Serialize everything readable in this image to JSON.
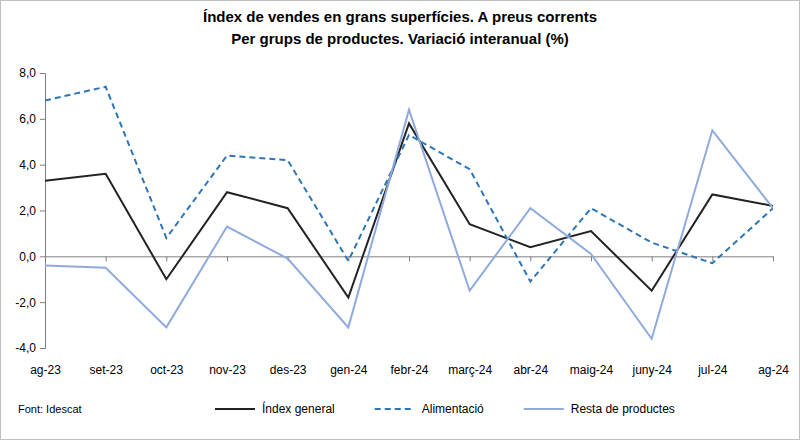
{
  "chart_data": {
    "type": "line",
    "title": "Índex de vendes en grans superfícies. A preus corrents",
    "subtitle": "Per grups de productes. Variació interanual (%)",
    "source": "Font: Idescat",
    "categories": [
      "ag-23",
      "set-23",
      "oct-23",
      "nov-23",
      "des-23",
      "gen-24",
      "febr-24",
      "març-24",
      "abr-24",
      "maig-24",
      "juny-24",
      "jul-24",
      "ag-24"
    ],
    "series": [
      {
        "name": "Índex general",
        "color": "#222222",
        "line_style": "solid",
        "values": [
          3.3,
          3.6,
          -1.0,
          2.8,
          2.1,
          -1.8,
          5.8,
          1.4,
          0.4,
          1.1,
          -1.5,
          2.7,
          2.2
        ]
      },
      {
        "name": "Alimentació",
        "color": "#2e75b6",
        "line_style": "dashed",
        "values": [
          6.8,
          7.4,
          0.8,
          4.4,
          4.2,
          -0.2,
          5.3,
          3.8,
          -1.1,
          2.1,
          0.6,
          -0.3,
          2.1
        ]
      },
      {
        "name": "Resta de productes",
        "color": "#8faadc",
        "line_style": "solid",
        "values": [
          -0.4,
          -0.5,
          -3.1,
          1.3,
          -0.1,
          -3.1,
          6.4,
          -1.5,
          2.1,
          0.1,
          -3.6,
          5.5,
          2.1
        ]
      }
    ],
    "ylim": [
      -4,
      8
    ],
    "yticks": [
      {
        "value": -4,
        "label": "-4,0"
      },
      {
        "value": -2,
        "label": "-2,0"
      },
      {
        "value": 0,
        "label": "0,0"
      },
      {
        "value": 2,
        "label": "2,0"
      },
      {
        "value": 4,
        "label": "4,0"
      },
      {
        "value": 6,
        "label": "6,0"
      },
      {
        "value": 8,
        "label": "8,0"
      }
    ],
    "grid": false,
    "legend": "bottom"
  }
}
